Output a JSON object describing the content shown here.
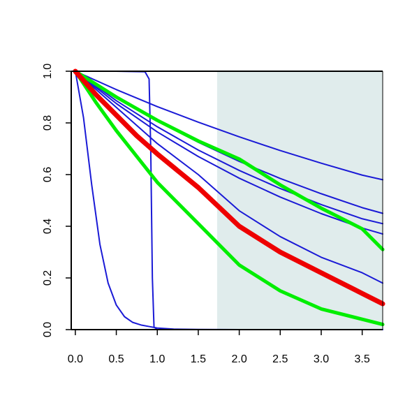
{
  "chart_data": {
    "type": "line",
    "title": "",
    "xlabel": "",
    "ylabel": "",
    "xlim": [
      -0.05,
      3.75
    ],
    "ylim": [
      0.0,
      1.0
    ],
    "grid": false,
    "legend": "none",
    "x_ticks": [
      "0.0",
      "0.5",
      "1.0",
      "1.5",
      "2.0",
      "2.5",
      "3.0",
      "3.5"
    ],
    "y_ticks": [
      "0.0",
      "0.2",
      "0.4",
      "0.6",
      "0.8",
      "1.0"
    ],
    "shaded_region": {
      "x": [
        1.73,
        3.75
      ],
      "color": "#e0ecec"
    },
    "series": [
      {
        "color": "#1a1ad6",
        "width": 2,
        "x": [
          0,
          0.1,
          0.2,
          0.3,
          0.4,
          0.5,
          0.6,
          0.7,
          0.8,
          0.9,
          1.0,
          1.2,
          1.5,
          2.0,
          3.75
        ],
        "values": [
          1.0,
          0.82,
          0.56,
          0.33,
          0.18,
          0.095,
          0.05,
          0.028,
          0.018,
          0.012,
          0.006,
          0.002,
          0.0005,
          0.0,
          0.0
        ]
      },
      {
        "color": "#1a1ad6",
        "width": 2,
        "x": [
          0,
          0.5,
          0.85,
          0.9,
          0.92,
          0.94,
          0.96,
          1.0,
          1.5,
          3.75
        ],
        "values": [
          1.0,
          1.0,
          0.998,
          0.97,
          0.7,
          0.2,
          0.01,
          0.0,
          0.0,
          0.0
        ]
      },
      {
        "color": "#1a1ad6",
        "width": 2,
        "x": [
          0,
          0.5,
          1.0,
          1.5,
          2.0,
          2.5,
          3.0,
          3.5,
          3.75
        ],
        "values": [
          1.0,
          0.929,
          0.863,
          0.803,
          0.746,
          0.693,
          0.644,
          0.598,
          0.58
        ]
      },
      {
        "color": "#1a1ad6",
        "width": 2,
        "x": [
          0,
          0.5,
          1.0,
          1.5,
          2.0,
          2.5,
          3.0,
          3.5,
          3.75
        ],
        "values": [
          1.0,
          0.898,
          0.807,
          0.725,
          0.651,
          0.585,
          0.526,
          0.472,
          0.45
        ]
      },
      {
        "color": "#1a1ad6",
        "width": 2,
        "x": [
          0,
          0.5,
          1.0,
          1.5,
          2.0,
          2.5,
          3.0,
          3.5,
          3.75
        ],
        "values": [
          1.0,
          0.886,
          0.785,
          0.695,
          0.616,
          0.546,
          0.484,
          0.429,
          0.41
        ]
      },
      {
        "color": "#1a1ad6",
        "width": 2,
        "x": [
          0,
          0.5,
          1.0,
          1.5,
          2.0,
          2.5,
          3.0,
          3.5,
          3.75
        ],
        "values": [
          1.0,
          0.875,
          0.765,
          0.67,
          0.586,
          0.513,
          0.449,
          0.393,
          0.37
        ]
      },
      {
        "color": "#1a1ad6",
        "width": 2,
        "x": [
          0,
          0.25,
          0.5,
          1.0,
          1.5,
          2.0,
          2.5,
          3.0,
          3.5,
          3.75
        ],
        "values": [
          1.0,
          0.93,
          0.86,
          0.72,
          0.6,
          0.46,
          0.36,
          0.28,
          0.22,
          0.18
        ]
      },
      {
        "color": "#00ee00",
        "width": 5,
        "x": [
          0,
          0.5,
          1.0,
          1.5,
          2.0,
          2.5,
          3.0,
          3.5,
          3.75
        ],
        "values": [
          1.0,
          0.9,
          0.81,
          0.73,
          0.66,
          0.56,
          0.47,
          0.39,
          0.31
        ]
      },
      {
        "color": "#00ee00",
        "width": 5,
        "x": [
          0,
          0.25,
          0.5,
          0.75,
          1.0,
          1.5,
          2.0,
          2.5,
          3.0,
          3.5,
          3.75
        ],
        "values": [
          1.0,
          0.88,
          0.77,
          0.67,
          0.57,
          0.41,
          0.25,
          0.15,
          0.08,
          0.04,
          0.02
        ]
      },
      {
        "color": "#ee0000",
        "width": 7,
        "x": [
          0,
          0.25,
          0.5,
          0.75,
          1.0,
          1.5,
          2.0,
          2.5,
          3.0,
          3.5,
          3.75
        ],
        "values": [
          1.0,
          0.91,
          0.83,
          0.75,
          0.68,
          0.55,
          0.4,
          0.3,
          0.22,
          0.14,
          0.1
        ]
      }
    ]
  }
}
